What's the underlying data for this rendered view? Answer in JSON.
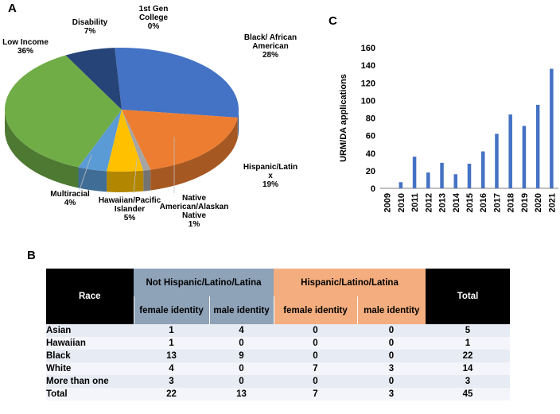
{
  "panels": {
    "a": "A",
    "b": "B",
    "c": "C"
  },
  "chart_data": [
    {
      "type": "pie",
      "slices": [
        {
          "label": "Black/ African\nAmerican",
          "pct": "28%",
          "value": 28,
          "color": "#4472c4"
        },
        {
          "label": "Hispanic/Latin\nx",
          "pct": "19%",
          "value": 19,
          "color": "#ed7d31"
        },
        {
          "label": "Native\nAmerican/Alaskan\nNative",
          "pct": "1%",
          "value": 1,
          "color": "#a5a5a5"
        },
        {
          "label": "Hawaiian/Pacific\nIslander",
          "pct": "5%",
          "value": 5,
          "color": "#ffc000"
        },
        {
          "label": "Multiracial",
          "pct": "4%",
          "value": 4,
          "color": "#5b9bd5"
        },
        {
          "label": "Low Income",
          "pct": "36%",
          "value": 36,
          "color": "#70ad47"
        },
        {
          "label": "Disability",
          "pct": "7%",
          "value": 7,
          "color": "#264478"
        },
        {
          "label": "1st Gen\nCollege",
          "pct": "0%",
          "value": 0,
          "color": "#9e480e"
        }
      ]
    },
    {
      "type": "bar",
      "ylabel": "URM/DA applications",
      "ylim": [
        0,
        160
      ],
      "yticks": [
        0,
        20,
        40,
        60,
        80,
        100,
        120,
        140,
        160
      ],
      "categories": [
        "2009",
        "2010",
        "2011",
        "2012",
        "2013",
        "2014",
        "2015",
        "2016",
        "2017",
        "2018",
        "2019",
        "2020",
        "2021"
      ],
      "values": [
        0,
        7,
        36,
        18,
        29,
        16,
        28,
        42,
        62,
        84,
        71,
        95,
        136
      ],
      "color": "#4472c4"
    },
    {
      "type": "table",
      "headers": {
        "race": "Race",
        "not_hispanic": "Not Hispanic/Latino/Latina",
        "hispanic": "Hispanic/Latino/Latina",
        "total": "Total",
        "female": "female identity",
        "male": "male identity"
      },
      "rows": [
        {
          "race": "Asian",
          "nh_f": "1",
          "nh_m": "4",
          "h_f": "0",
          "h_m": "0",
          "total": "5"
        },
        {
          "race": "Hawaiian",
          "nh_f": "1",
          "nh_m": "0",
          "h_f": "0",
          "h_m": "0",
          "total": "1"
        },
        {
          "race": "Black",
          "nh_f": "13",
          "nh_m": "9",
          "h_f": "0",
          "h_m": "0",
          "total": "22"
        },
        {
          "race": "White",
          "nh_f": "4",
          "nh_m": "0",
          "h_f": "7",
          "h_m": "3",
          "total": "14"
        },
        {
          "race": "More than one",
          "nh_f": "3",
          "nh_m": "0",
          "h_f": "0",
          "h_m": "0",
          "total": "3"
        },
        {
          "race": "Total",
          "nh_f": "22",
          "nh_m": "13",
          "h_f": "7",
          "h_m": "3",
          "total": "45"
        }
      ]
    }
  ]
}
